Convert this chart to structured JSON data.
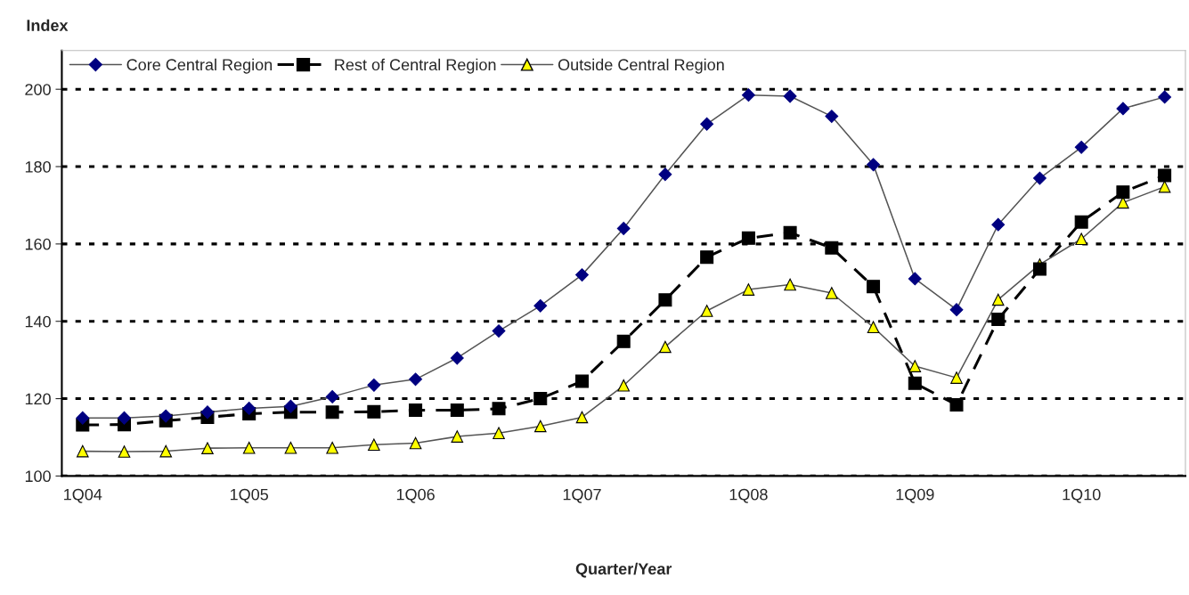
{
  "chart_data": {
    "type": "line",
    "xlabel": "Quarter/Year",
    "ylabel": "Index",
    "categories": [
      "1Q04",
      null,
      null,
      null,
      "1Q05",
      null,
      null,
      null,
      "1Q06",
      null,
      null,
      null,
      "1Q07",
      null,
      null,
      null,
      "1Q08",
      null,
      null,
      null,
      "1Q09",
      null,
      null,
      null,
      "1Q10",
      null,
      null
    ],
    "series": [
      {
        "name": "Core Central Region",
        "color": "#000080",
        "marker": "diamond",
        "line_style": "solid",
        "values": [
          115,
          115,
          115.5,
          116.5,
          117.5,
          118,
          120.5,
          123.5,
          125,
          130.5,
          137.5,
          144,
          152,
          164,
          178,
          191,
          198.5,
          198.2,
          193,
          180.5,
          151,
          143,
          165,
          177,
          185,
          195,
          198
        ]
      },
      {
        "name": "Rest of Central Region",
        "color": "#000000",
        "marker": "square",
        "line_style": "dashed",
        "values": [
          113.2,
          113.3,
          114.3,
          115.2,
          116.1,
          116.5,
          116.5,
          116.6,
          117,
          117,
          117.4,
          120,
          124.5,
          134.8,
          145.5,
          156.6,
          161.5,
          162.9,
          159,
          149,
          124,
          118.4,
          140.5,
          153.5,
          165.7,
          173.4,
          177.7
        ]
      },
      {
        "name": "Outside Central Region",
        "color": "#ffff00",
        "marker": "triangle",
        "line_style": "solid",
        "values": [
          106.4,
          106.3,
          106.4,
          107.2,
          107.3,
          107.3,
          107.3,
          108.1,
          108.5,
          110.2,
          111.1,
          112.9,
          115.2,
          123.4,
          133.4,
          142.7,
          148.2,
          149.5,
          147.3,
          138.5,
          128.4,
          125.4,
          145.6,
          154.7,
          161.3,
          170.7,
          174.8
        ]
      }
    ],
    "ylim": [
      100,
      210
    ],
    "yticks": [
      100,
      120,
      140,
      160,
      180,
      200
    ],
    "grid": "y",
    "legend": "top left"
  }
}
